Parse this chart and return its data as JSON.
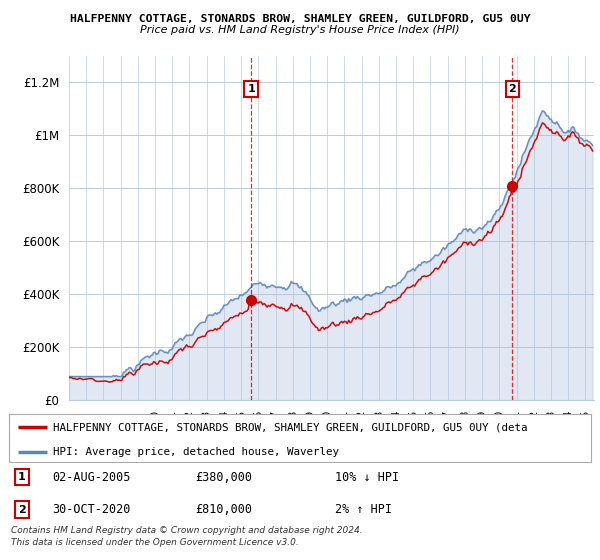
{
  "title": "HALFPENNY COTTAGE, STONARDS BROW, SHAMLEY GREEN, GUILDFORD, GU5 0UY",
  "subtitle": "Price paid vs. HM Land Registry's House Price Index (HPI)",
  "ylim": [
    0,
    1300000
  ],
  "yticks": [
    0,
    200000,
    400000,
    600000,
    800000,
    1000000,
    1200000
  ],
  "ytick_labels": [
    "£0",
    "£200K",
    "£400K",
    "£600K",
    "£800K",
    "£1M",
    "£1.2M"
  ],
  "t1_year": 2005.58,
  "t1_price": 380000,
  "t1_date": "02-AUG-2005",
  "t1_note": "10% ↓ HPI",
  "t2_year": 2020.75,
  "t2_price": 810000,
  "t2_date": "30-OCT-2020",
  "t2_note": "2% ↑ HPI",
  "legend_property": "HALFPENNY COTTAGE, STONARDS BROW, SHAMLEY GREEN, GUILDFORD, GU5 0UY (deta",
  "legend_hpi": "HPI: Average price, detached house, Waverley",
  "footnote1": "Contains HM Land Registry data © Crown copyright and database right 2024.",
  "footnote2": "This data is licensed under the Open Government Licence v3.0.",
  "property_color": "#cc0000",
  "hpi_color": "#5588bb",
  "hpi_fill_color": "#aabbdd",
  "grid_color": "#bbccdd",
  "bg_color": "#ffffff"
}
